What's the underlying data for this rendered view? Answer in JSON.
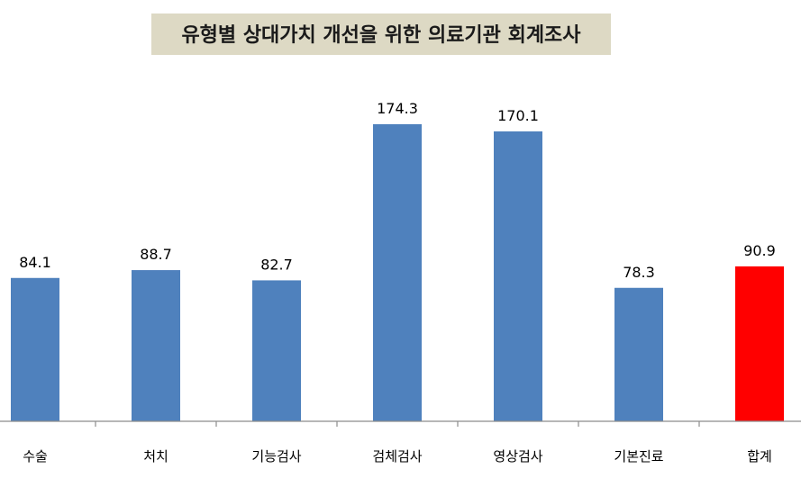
{
  "chart_data": {
    "type": "bar",
    "title": "유형별 상대가치 개선을 위한 의료기관 회계조사",
    "xlabel": "",
    "ylabel": "",
    "ylim": [
      0,
      200
    ],
    "grid": false,
    "categories": [
      "수술",
      "처치",
      "기능검사",
      "검체검사",
      "영상검사",
      "기본진료",
      "합계"
    ],
    "values": [
      84.1,
      88.7,
      82.7,
      174.3,
      170.1,
      78.3,
      90.9
    ],
    "value_labels": [
      "84.1",
      "88.7",
      "82.7",
      "174.3",
      "170.1",
      "78.3",
      "90.9"
    ],
    "colors": [
      "#4f81bd",
      "#4f81bd",
      "#4f81bd",
      "#4f81bd",
      "#4f81bd",
      "#4f81bd",
      "#ff0000"
    ],
    "value_label_colors": [
      "#000000",
      "#000000",
      "#000000",
      "#000000",
      "#000000",
      "#000000",
      "#ff0000"
    ]
  }
}
